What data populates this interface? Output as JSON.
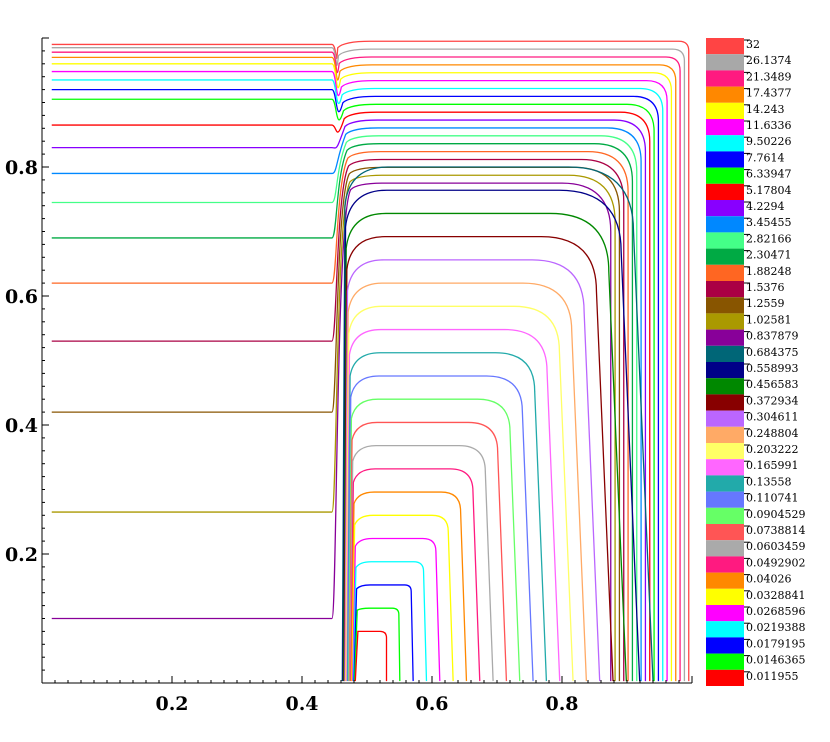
{
  "chart_data": {
    "type": "contour",
    "title": "",
    "xlabel": "",
    "ylabel": "",
    "xlim": [
      0,
      1
    ],
    "ylim": [
      0,
      1
    ],
    "xticks": [
      "0.2",
      "0.4",
      "0.6",
      "0.8"
    ],
    "yticks": [
      "0.2",
      "0.4",
      "0.6",
      "0.8"
    ],
    "legend_position": "right",
    "step_x": 0.45,
    "levels": [
      {
        "value": "32",
        "color": "#ff4444",
        "edge_y": 0.99
      },
      {
        "value": "26.1374",
        "color": "#a8a8a8",
        "edge_y": 0.985
      },
      {
        "value": "21.3489",
        "color": "#ff1a80",
        "edge_y": 0.978
      },
      {
        "value": "17.4377",
        "color": "#ff8800",
        "edge_y": 0.97
      },
      {
        "value": "14.243",
        "color": "#ffff00",
        "edge_y": 0.96
      },
      {
        "value": "11.6336",
        "color": "#ff00ff",
        "edge_y": 0.948
      },
      {
        "value": "9.50226",
        "color": "#00ffff",
        "edge_y": 0.935
      },
      {
        "value": "7.7614",
        "color": "#0000ff",
        "edge_y": 0.92
      },
      {
        "value": "6.33947",
        "color": "#00ff00",
        "edge_y": 0.905
      },
      {
        "value": "5.17804",
        "color": "#ff0000",
        "edge_y": 0.865
      },
      {
        "value": "4.2294",
        "color": "#8800ff",
        "edge_y": 0.83
      },
      {
        "value": "3.45455",
        "color": "#0088ff",
        "edge_y": 0.79
      },
      {
        "value": "2.82166",
        "color": "#44ff88",
        "edge_y": 0.745
      },
      {
        "value": "2.30471",
        "color": "#00aa44",
        "edge_y": 0.69
      },
      {
        "value": "1.88248",
        "color": "#ff6622",
        "edge_y": 0.62
      },
      {
        "value": "1.5376",
        "color": "#aa0044",
        "edge_y": 0.53
      },
      {
        "value": "1.2559",
        "color": "#885500",
        "edge_y": 0.42
      },
      {
        "value": "1.02581",
        "color": "#aa9900",
        "edge_y": 0.265
      },
      {
        "value": "0.837879",
        "color": "#880099",
        "edge_y": 0.1
      },
      {
        "value": "0.684375",
        "color": "#006677",
        "edge_y": null
      },
      {
        "value": "0.558993",
        "color": "#000088",
        "edge_y": null
      },
      {
        "value": "0.456583",
        "color": "#008800",
        "edge_y": null
      },
      {
        "value": "0.372934",
        "color": "#880000",
        "edge_y": null
      },
      {
        "value": "0.304611",
        "color": "#bb66ff",
        "edge_y": null
      },
      {
        "value": "0.248804",
        "color": "#ffaa66",
        "edge_y": null
      },
      {
        "value": "0.203222",
        "color": "#ffff66",
        "edge_y": null
      },
      {
        "value": "0.165991",
        "color": "#ff66ff",
        "edge_y": null
      },
      {
        "value": "0.13558",
        "color": "#22aaaa",
        "edge_y": null
      },
      {
        "value": "0.110741",
        "color": "#6677ff",
        "edge_y": null
      },
      {
        "value": "0.0904529",
        "color": "#66ff66",
        "edge_y": null
      },
      {
        "value": "0.0738814",
        "color": "#ff5555",
        "edge_y": null
      },
      {
        "value": "0.0603459",
        "color": "#aaaaaa",
        "edge_y": null
      },
      {
        "value": "0.0492902",
        "color": "#ff1a80",
        "edge_y": null
      },
      {
        "value": "0.04026",
        "color": "#ff8800",
        "edge_y": null
      },
      {
        "value": "0.0328841",
        "color": "#ffff00",
        "edge_y": null
      },
      {
        "value": "0.0268596",
        "color": "#ff00ff",
        "edge_y": null
      },
      {
        "value": "0.0219388",
        "color": "#00ffff",
        "edge_y": null
      },
      {
        "value": "0.0179195",
        "color": "#0000ff",
        "edge_y": null
      },
      {
        "value": "0.0146365",
        "color": "#00ff00",
        "edge_y": null
      },
      {
        "value": "0.011955",
        "color": "#ff0000",
        "edge_y": null
      }
    ]
  }
}
